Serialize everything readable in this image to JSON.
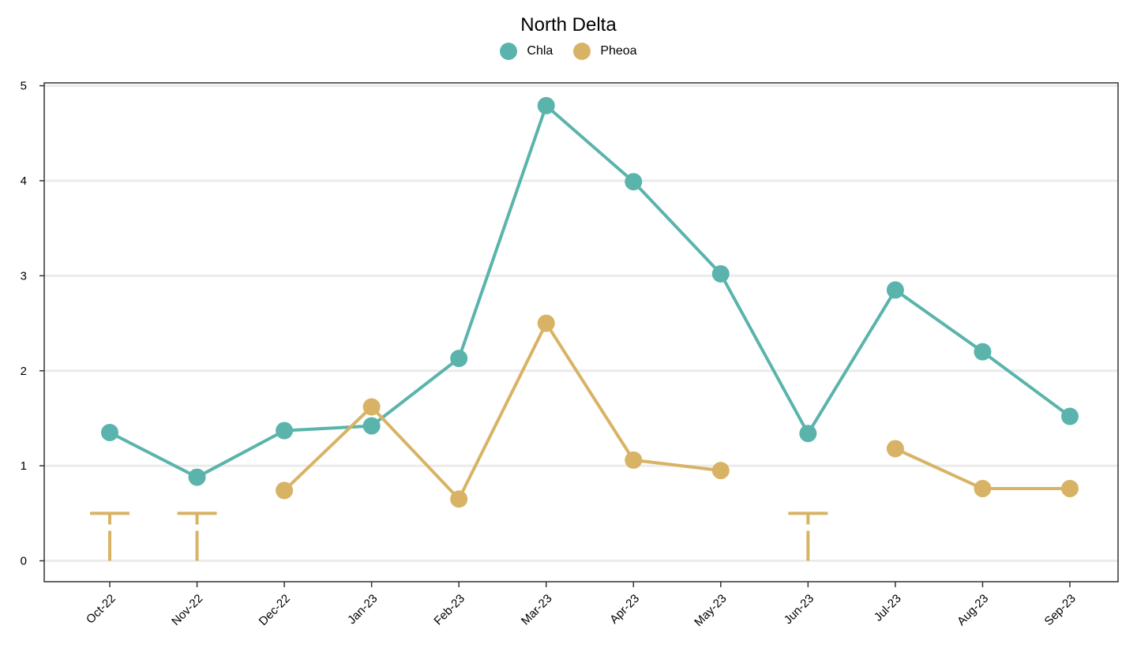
{
  "chart_data": {
    "type": "line",
    "title": "North Delta",
    "xlabel": "",
    "ylabel": "",
    "ylim": [
      -0.22,
      5.03
    ],
    "yticks": [
      0,
      1,
      2,
      3,
      4,
      5
    ],
    "categories": [
      "Oct-22",
      "Nov-22",
      "Dec-22",
      "Jan-23",
      "Feb-23",
      "Mar-23",
      "Apr-23",
      "May-23",
      "Jun-23",
      "Jul-23",
      "Aug-23",
      "Sep-23"
    ],
    "grid": "horizontal major gridlines",
    "legend_position": "top",
    "series": [
      {
        "name": "Chla",
        "color": "#5AB4AC",
        "values": [
          1.35,
          0.88,
          1.37,
          1.42,
          2.13,
          4.79,
          3.99,
          3.02,
          1.34,
          2.85,
          2.2,
          1.52
        ]
      },
      {
        "name": "Pheoa",
        "color": "#D8B365",
        "values": [
          null,
          null,
          0.74,
          1.62,
          0.65,
          2.5,
          1.06,
          0.95,
          null,
          1.18,
          0.76,
          0.76
        ],
        "below_detection_limit": [
          {
            "category": "Oct-22",
            "range": [
              0,
              0.5
            ]
          },
          {
            "category": "Nov-22",
            "range": [
              0,
              0.5
            ]
          },
          {
            "category": "Jun-23",
            "range": [
              0,
              0.5
            ]
          }
        ]
      }
    ]
  }
}
